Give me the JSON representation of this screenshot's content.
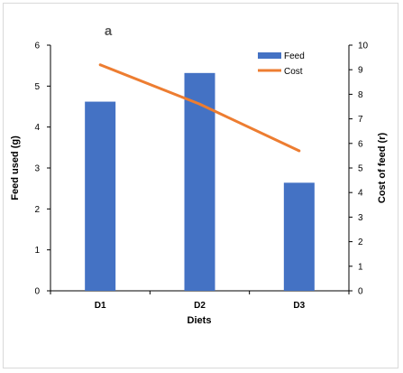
{
  "chart_data": {
    "type": "bar+line",
    "panel_label": "a",
    "categories": [
      "D1",
      "D2",
      "D3"
    ],
    "series": [
      {
        "name": "Feed",
        "type": "bar",
        "axis": "left",
        "values": [
          4.62,
          5.32,
          2.64
        ],
        "color": "#4472C4"
      },
      {
        "name": "Cost",
        "type": "line",
        "axis": "right",
        "values": [
          9.2,
          7.6,
          5.7
        ],
        "color": "#ED7D31"
      }
    ],
    "xlabel": "Diets",
    "ylabel_left": "Feed used (g)",
    "ylabel_right": "Cost of feed (r)",
    "ylim_left": [
      0,
      6
    ],
    "ylim_right": [
      0,
      10
    ],
    "yticks_left": [
      "0",
      "1",
      "2",
      "3",
      "4",
      "5",
      "6"
    ],
    "yticks_right": [
      "0",
      "1",
      "2",
      "3",
      "4",
      "5",
      "6",
      "7",
      "8",
      "9",
      "10"
    ],
    "grid": false,
    "legend_position": "top-right"
  }
}
